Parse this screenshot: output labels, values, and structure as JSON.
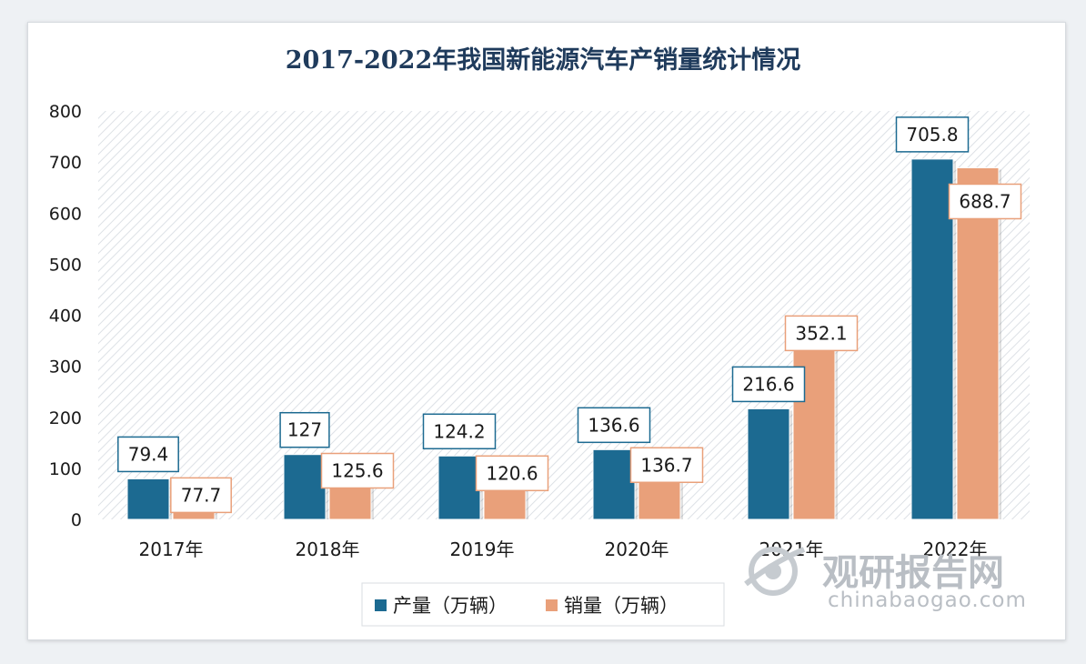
{
  "chart_data": {
    "type": "bar",
    "title": "2017-2022年我国新能源汽车产销量统计情况",
    "categories": [
      "2017年",
      "2018年",
      "2019年",
      "2020年",
      "2021年",
      "2022年"
    ],
    "series": [
      {
        "name": "产量（万辆）",
        "values": [
          79.4,
          127,
          124.2,
          136.6,
          216.6,
          705.8
        ],
        "labels": [
          "79.4",
          "127",
          "124.2",
          "136.6",
          "216.6",
          "705.8"
        ],
        "color": "#1c6a91"
      },
      {
        "name": "销量（万辆）",
        "values": [
          77.7,
          125.6,
          120.6,
          136.7,
          352.1,
          688.7
        ],
        "labels": [
          "77.7",
          "125.6",
          "120.6",
          "136.7",
          "352.1",
          "688.7"
        ],
        "color": "#e9a07a"
      }
    ],
    "ylim": [
      0,
      800
    ],
    "yticks": [
      "0",
      "100",
      "200",
      "300",
      "400",
      "500",
      "600",
      "700",
      "800"
    ],
    "grid": false,
    "legend": "bottom"
  },
  "watermark": {
    "text": "观研报告网",
    "url_text": "chinabaogao.com"
  },
  "colors": {
    "label_border_production": "#1c6a91",
    "label_border_sales": "#e9a07a",
    "title": "#1f3b5c"
  }
}
